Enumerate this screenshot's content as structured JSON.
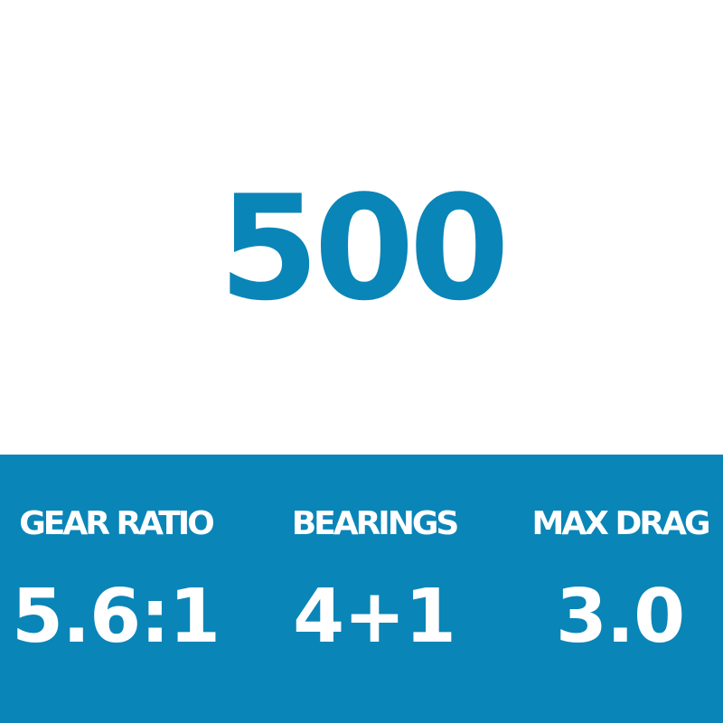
{
  "model": "500",
  "colors": {
    "accent": "#0a85b7",
    "background": "#ffffff",
    "text_on_accent": "#ffffff"
  },
  "specs": [
    {
      "label": "GEAR RATIO",
      "value": "5.6:1"
    },
    {
      "label": "BEARINGS",
      "value": "4+1"
    },
    {
      "label": "MAX DRAG",
      "value": "3.0"
    }
  ]
}
